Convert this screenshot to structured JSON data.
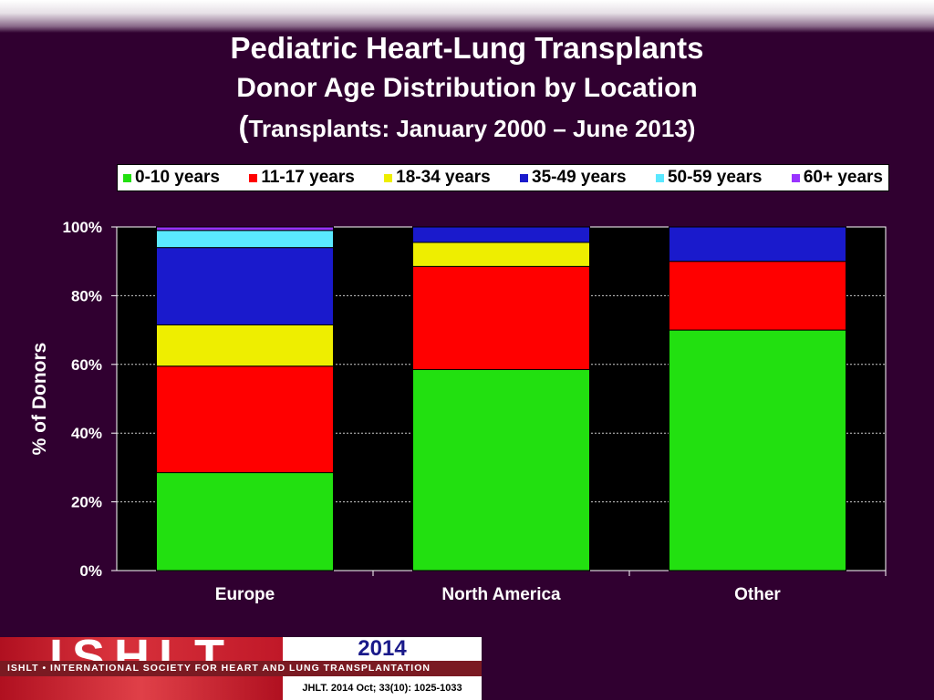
{
  "header": {
    "title_line1": "Pediatric Heart-Lung Transplants",
    "title_line2": "Donor Age Distribution by Location",
    "title_line3_paren_open": "(",
    "title_line3": "Transplants: January 2000 – June 2013)"
  },
  "chart_data": {
    "type": "bar",
    "stacked": true,
    "categories": [
      "Europe",
      "North America",
      "Other"
    ],
    "series": [
      {
        "name": "0-10 years",
        "color": "#22e010",
        "values": [
          28.5,
          58.5,
          70.0
        ]
      },
      {
        "name": "11-17 years",
        "color": "#ff0000",
        "values": [
          31.0,
          30.0,
          20.0
        ]
      },
      {
        "name": "18-34 years",
        "color": "#eeee00",
        "values": [
          12.0,
          7.0,
          0.0
        ]
      },
      {
        "name": "35-49 years",
        "color": "#1a1acc",
        "values": [
          22.5,
          4.5,
          10.0
        ]
      },
      {
        "name": "50-59 years",
        "color": "#5ae8ff",
        "values": [
          5.0,
          0.0,
          0.0
        ]
      },
      {
        "name": "60+ years",
        "color": "#9933ff",
        "values": [
          1.0,
          0.0,
          0.0
        ]
      }
    ],
    "ylabel": "% of Donors",
    "xlabel": "",
    "ylim": [
      0,
      100
    ],
    "yticks": [
      "0%",
      "20%",
      "40%",
      "60%",
      "80%",
      "100%"
    ],
    "grid": true,
    "legend_position": "top"
  },
  "footer": {
    "logo_text": "ISHLT",
    "tagline": "ISHLT • INTERNATIONAL SOCIETY FOR HEART AND LUNG TRANSPLANTATION",
    "year": "2014",
    "citation": "JHLT. 2014 Oct; 33(10): 1025-1033"
  }
}
